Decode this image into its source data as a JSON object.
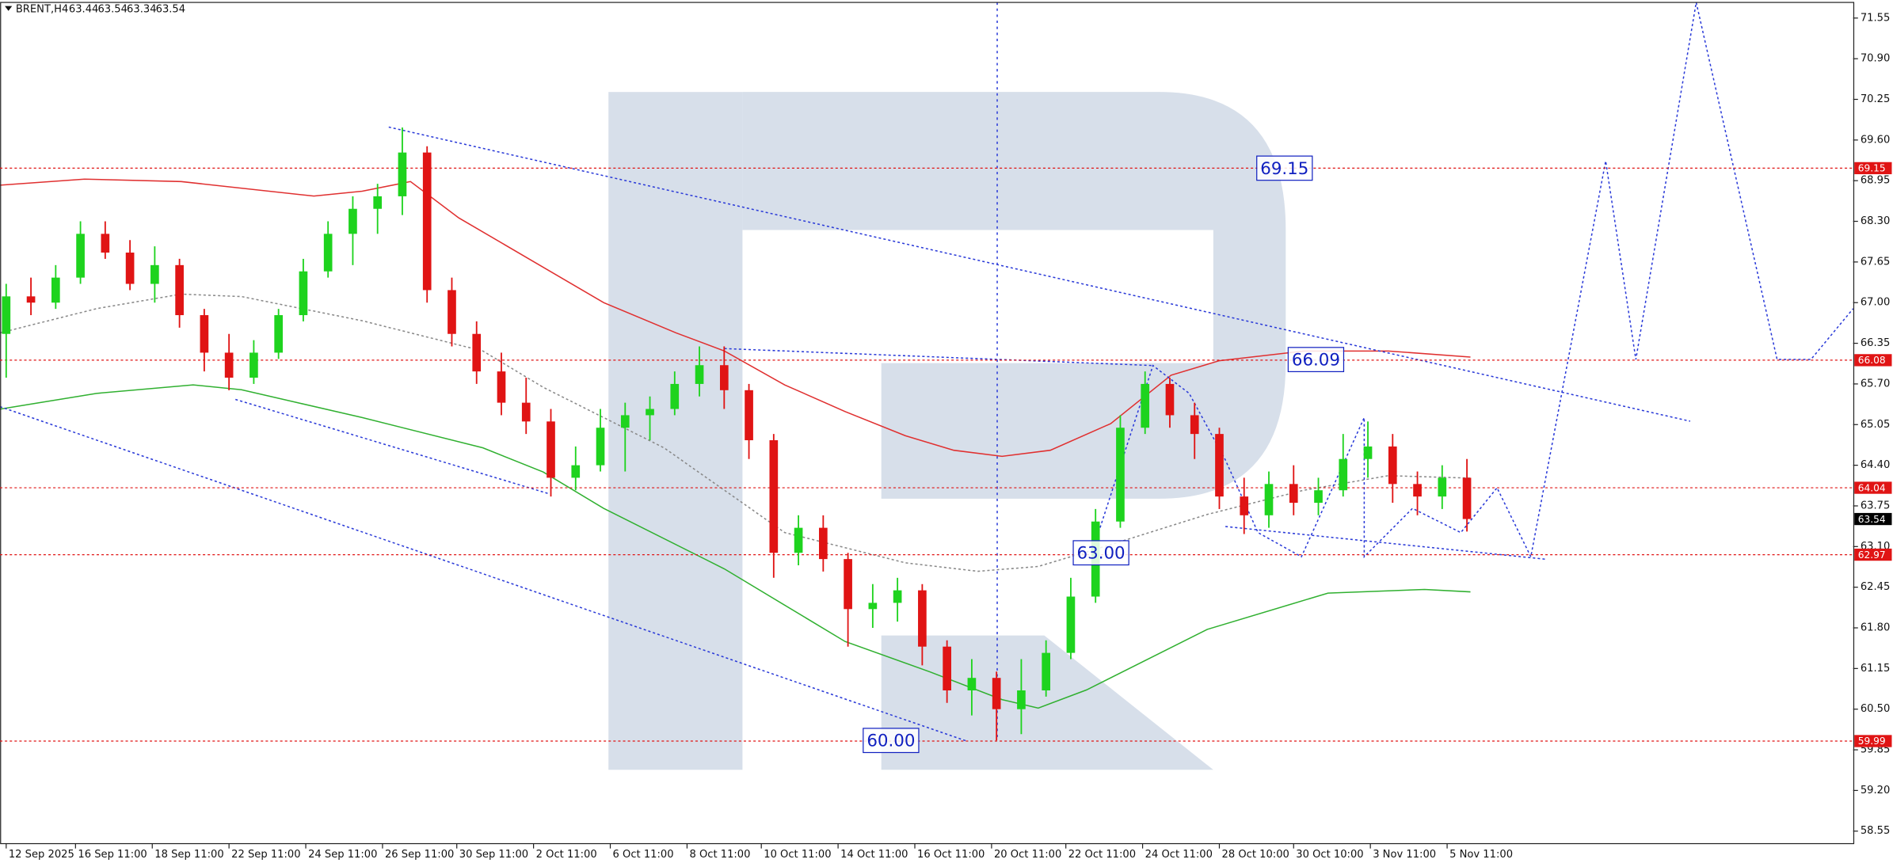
{
  "chart_data": {
    "type": "candlestick",
    "title": "BRENT,H4",
    "quote": [
      63.44,
      63.54,
      63.34,
      63.54
    ],
    "up_color": "#1ed31e",
    "down_color": "#e01414",
    "level_color": "#e01414",
    "open": [
      66.5,
      67.1,
      67.0,
      67.4,
      68.1,
      67.8,
      67.3,
      67.6,
      66.8,
      66.2,
      65.8,
      66.2,
      66.8,
      67.5,
      68.1,
      68.5,
      68.7,
      69.4,
      67.2,
      66.5,
      65.9,
      65.4,
      65.1,
      64.2,
      64.4,
      65.0,
      65.2,
      65.3,
      65.7,
      66.0,
      65.6,
      64.8,
      63.0,
      63.4,
      62.9,
      62.1,
      62.2,
      62.4,
      61.5,
      60.8,
      61.0,
      60.5,
      60.8,
      61.4,
      62.3,
      63.5,
      65.0,
      65.7,
      65.2,
      64.9,
      63.9,
      63.6,
      64.1,
      63.8,
      64.0,
      64.5,
      64.7,
      64.1,
      63.9,
      64.2
    ],
    "high": [
      67.3,
      67.4,
      67.6,
      68.3,
      68.3,
      68.0,
      67.9,
      67.7,
      66.9,
      66.5,
      66.4,
      66.9,
      67.7,
      68.3,
      68.7,
      68.9,
      69.8,
      69.5,
      67.4,
      66.7,
      66.2,
      65.8,
      65.3,
      64.7,
      65.3,
      65.4,
      65.5,
      65.9,
      66.3,
      66.3,
      65.7,
      64.9,
      63.6,
      63.6,
      63.0,
      62.5,
      62.6,
      62.5,
      61.6,
      61.3,
      61.1,
      61.3,
      61.6,
      62.6,
      63.7,
      65.2,
      65.9,
      65.8,
      65.4,
      65.0,
      64.2,
      64.3,
      64.4,
      64.2,
      64.9,
      65.1,
      64.9,
      64.3,
      64.4,
      64.5
    ],
    "low": [
      65.8,
      66.8,
      66.9,
      67.3,
      67.7,
      67.2,
      67.0,
      66.6,
      65.9,
      65.6,
      65.7,
      66.1,
      66.7,
      67.4,
      67.6,
      68.1,
      68.4,
      67.0,
      66.3,
      65.7,
      65.2,
      64.9,
      63.9,
      64.0,
      64.3,
      64.3,
      64.8,
      65.2,
      65.5,
      65.3,
      64.5,
      62.6,
      62.8,
      62.7,
      61.5,
      61.8,
      61.9,
      61.2,
      60.6,
      60.4,
      60.0,
      60.1,
      60.7,
      61.3,
      62.2,
      63.4,
      64.9,
      65.0,
      64.5,
      63.7,
      63.3,
      63.4,
      63.6,
      63.6,
      63.9,
      64.2,
      63.8,
      63.6,
      63.7,
      63.34
    ],
    "close": [
      67.1,
      67.0,
      67.4,
      68.1,
      67.8,
      67.3,
      67.6,
      66.8,
      66.2,
      65.8,
      66.2,
      66.8,
      67.5,
      68.1,
      68.5,
      68.7,
      69.4,
      67.2,
      66.5,
      65.9,
      65.4,
      65.1,
      64.2,
      64.4,
      65.0,
      65.2,
      65.3,
      65.7,
      66.0,
      65.6,
      64.8,
      63.0,
      63.4,
      62.9,
      62.1,
      62.2,
      62.4,
      61.5,
      60.8,
      61.0,
      60.5,
      60.8,
      61.4,
      62.3,
      63.5,
      65.0,
      65.7,
      65.2,
      64.9,
      63.9,
      63.6,
      64.1,
      63.8,
      64.0,
      64.5,
      64.7,
      64.1,
      63.9,
      64.2,
      63.54
    ],
    "xlim": [
      -0.25,
      74.6
    ],
    "xticks": [
      {
        "value": 0,
        "label": "12 Sep 2025"
      },
      {
        "value": 2.8,
        "label": "16 Sep 11:00"
      },
      {
        "value": 5.9,
        "label": "18 Sep 11:00"
      },
      {
        "value": 9.0,
        "label": "22 Sep 11:00"
      },
      {
        "value": 12.1,
        "label": "24 Sep 11:00"
      },
      {
        "value": 15.2,
        "label": "26 Sep 11:00"
      },
      {
        "value": 18.2,
        "label": "30 Sep 11:00"
      },
      {
        "value": 21.3,
        "label": "2 Oct 11:00"
      },
      {
        "value": 24.4,
        "label": "6 Oct 11:00"
      },
      {
        "value": 27.5,
        "label": "8 Oct 11:00"
      },
      {
        "value": 30.5,
        "label": "10 Oct 11:00"
      },
      {
        "value": 33.6,
        "label": "14 Oct 11:00"
      },
      {
        "value": 36.7,
        "label": "16 Oct 11:00"
      },
      {
        "value": 39.8,
        "label": "20 Oct 11:00"
      },
      {
        "value": 42.8,
        "label": "22 Oct 11:00"
      },
      {
        "value": 45.9,
        "label": "24 Oct 11:00"
      },
      {
        "value": 49.0,
        "label": "28 Oct 10:00"
      },
      {
        "value": 52.0,
        "label": "30 Oct 10:00"
      },
      {
        "value": 55.1,
        "label": "3 Nov 11:00"
      },
      {
        "value": 58.2,
        "label": "5 Nov 11:00"
      }
    ],
    "ylim": [
      58.35,
      71.8
    ],
    "yticks": [
      71.55,
      {
        "value": 70.9,
        "label": "70.90"
      },
      {
        "value": 70.25,
        "label": "70.25"
      },
      {
        "value": 69.6,
        "label": "69.60"
      },
      68.95,
      {
        "value": 68.3,
        "label": "68.30"
      },
      67.65,
      {
        "value": 67.0,
        "label": "67.00"
      },
      66.35,
      {
        "value": 65.7,
        "label": "65.70"
      },
      65.05,
      {
        "value": 64.4,
        "label": "64.40"
      },
      63.75,
      {
        "value": 63.1,
        "label": "63.10"
      },
      62.45,
      {
        "value": 61.8,
        "label": "61.80"
      },
      61.15,
      {
        "value": 60.5,
        "label": "60.50"
      },
      59.85,
      {
        "value": 59.2,
        "label": "59.20"
      },
      58.55
    ],
    "levels": [
      69.15,
      66.08,
      64.04,
      62.97,
      59.99
    ],
    "last_price": 63.54,
    "annotations": {
      "values": [
        69.15,
        66.09,
        63.0,
        60.0
      ],
      "value_labels": [
        "69.15",
        "66.09",
        "63.00",
        "60.00"
      ]
    }
  }
}
